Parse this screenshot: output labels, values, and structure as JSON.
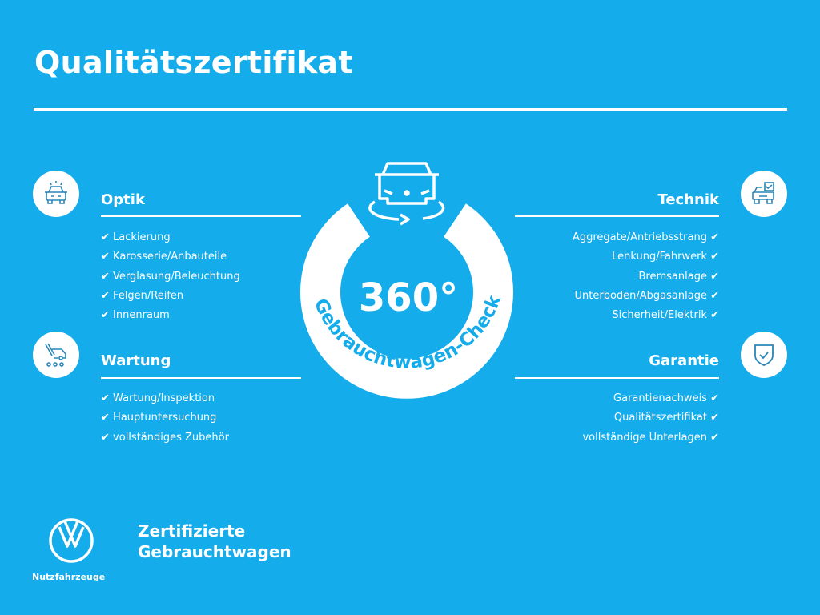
{
  "title": "Qualitätszertifikat",
  "colors": {
    "background": "#14acea",
    "foreground": "#ffffff"
  },
  "badge": {
    "number": "360°",
    "caption": "Gebrauchtwagen-Check",
    "icon": "car-rotate-icon"
  },
  "sections": {
    "optik": {
      "title": "Optik",
      "icon": "car-front-icon",
      "items": [
        "Lackierung",
        "Karosserie/Anbauteile",
        "Verglasung/Beleuchtung",
        "Felgen/Reifen",
        "Innenraum"
      ]
    },
    "wartung": {
      "title": "Wartung",
      "icon": "service-tools-icon",
      "items": [
        "Wartung/Inspektion",
        "Hauptuntersuchung",
        "vollständiges Zubehör"
      ]
    },
    "technik": {
      "title": "Technik",
      "icon": "car-checklist-icon",
      "items": [
        "Aggregate/Antriebsstrang",
        "Lenkung/Fahrwerk",
        "Bremsanlage",
        "Unterboden/Abgasanlage",
        "Sicherheit/Elektrik"
      ]
    },
    "garantie": {
      "title": "Garantie",
      "icon": "shield-check-icon",
      "items": [
        "Garantienachweis",
        "Qualitätszertifikat",
        "vollständige Unterlagen"
      ]
    }
  },
  "check_mark": "✔",
  "footer": {
    "line1": "Zertifizierte",
    "line2": "Gebrauchtwagen",
    "brand": "Nutzfahrzeuge",
    "logo": "vw-logo"
  }
}
